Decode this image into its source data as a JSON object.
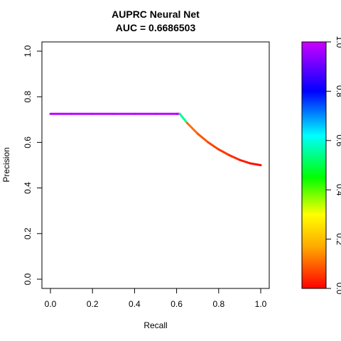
{
  "chart_data": {
    "type": "line",
    "title": "AUPRC Neural Net",
    "subtitle": "AUC = 0.6686503",
    "xlabel": "Recall",
    "ylabel": "Precision",
    "xlim": [
      0,
      1
    ],
    "ylim": [
      0,
      1
    ],
    "x_ticks": [
      "0.0",
      "0.2",
      "0.4",
      "0.6",
      "0.8",
      "1.0"
    ],
    "y_ticks": [
      "0.0",
      "0.2",
      "0.4",
      "0.6",
      "0.8",
      "1.0"
    ],
    "grid": false,
    "series": [
      {
        "x": [
          0.0,
          0.1,
          0.2,
          0.3,
          0.4,
          0.5,
          0.6,
          0.615,
          0.65,
          0.7,
          0.75,
          0.8,
          0.85,
          0.9,
          0.95,
          1.0
        ],
        "y": [
          0.725,
          0.725,
          0.725,
          0.725,
          0.725,
          0.725,
          0.725,
          0.725,
          0.685,
          0.638,
          0.6,
          0.569,
          0.544,
          0.523,
          0.508,
          0.5
        ],
        "threshold": [
          1.0,
          1.0,
          1.0,
          1.0,
          1.0,
          1.0,
          1.0,
          0.98,
          0.1,
          0.08,
          0.06,
          0.05,
          0.04,
          0.03,
          0.015,
          0.0
        ]
      }
    ],
    "colorbar": {
      "ticks": [
        "0.0",
        "0.2",
        "0.4",
        "0.6",
        "0.8",
        "1.0"
      ],
      "range": [
        0,
        1
      ],
      "colors": [
        "#ff0000",
        "#ffff00",
        "#00ff00",
        "#00ffff",
        "#0000ff",
        "#ff00ff"
      ]
    }
  }
}
